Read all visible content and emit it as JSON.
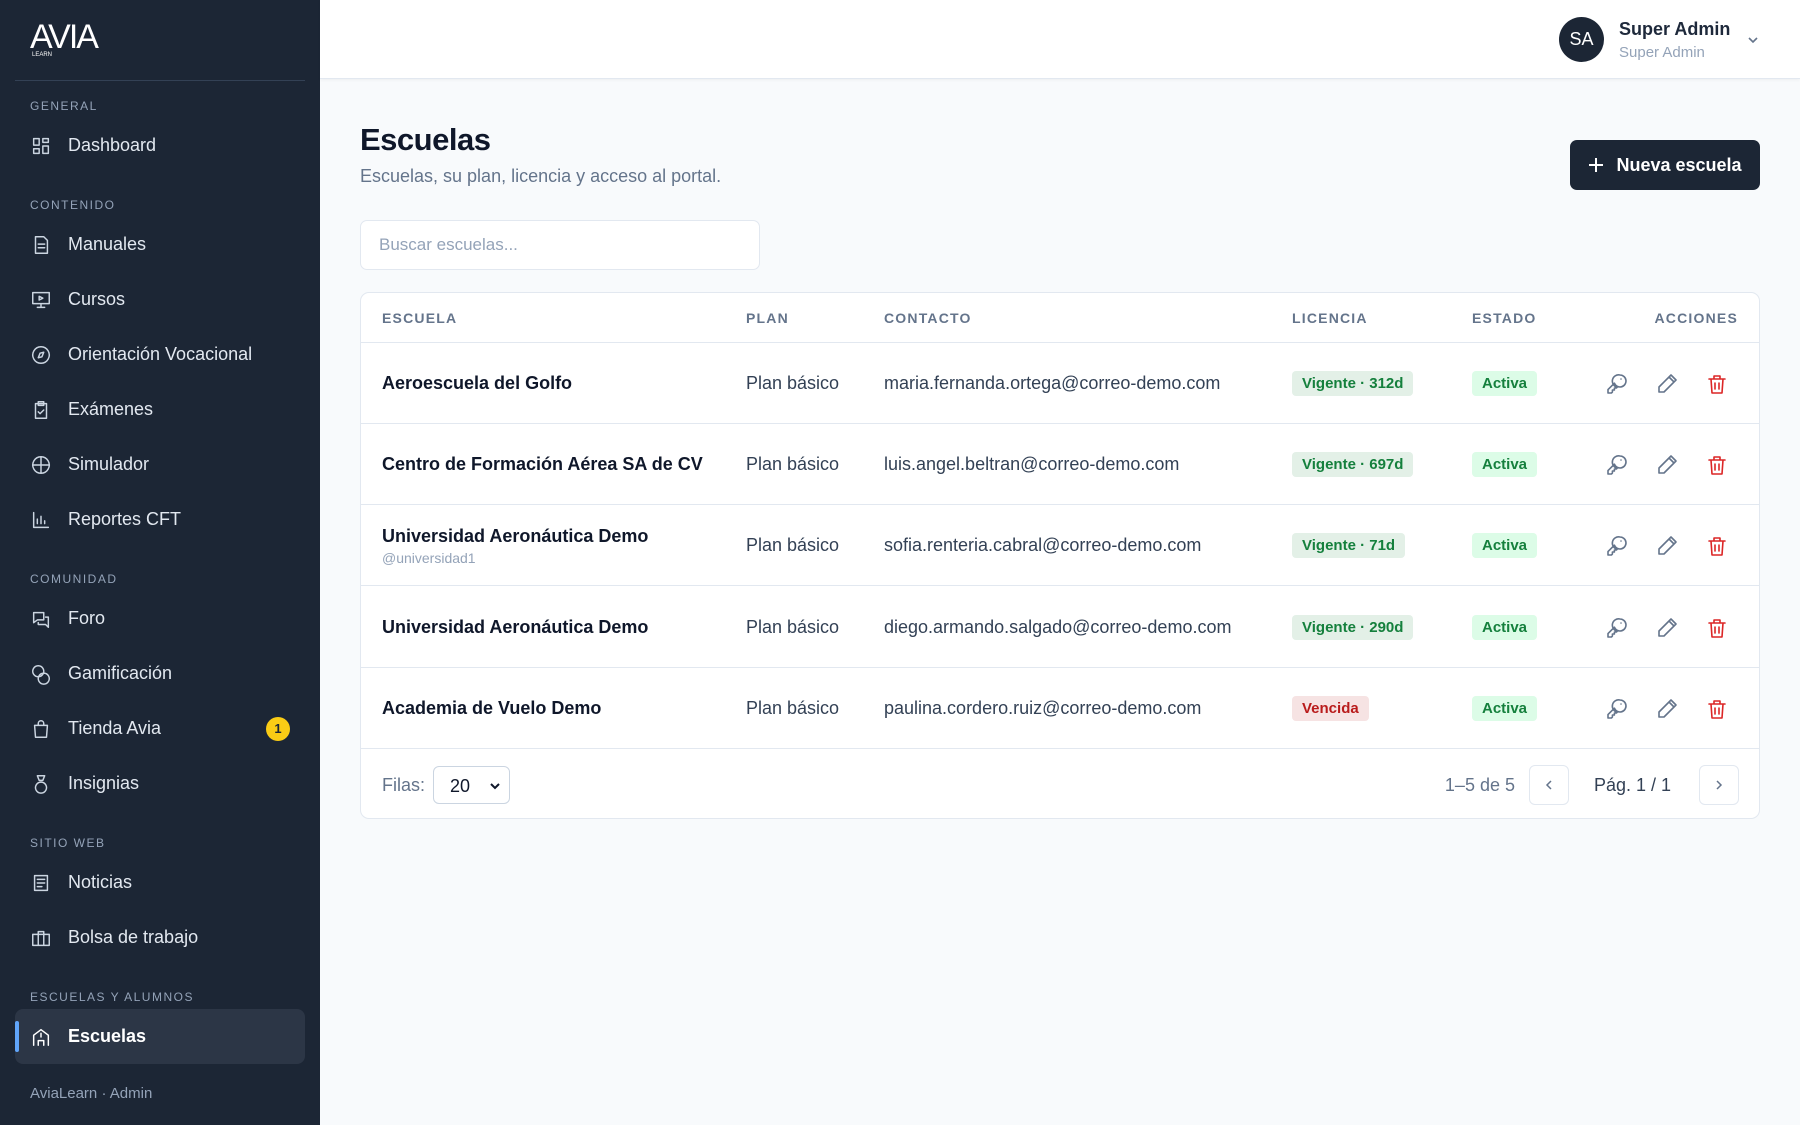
{
  "sidebar": {
    "logo": {
      "mark": "AVIA",
      "sub": "LEARN"
    },
    "sections": [
      {
        "label": "GENERAL",
        "items": [
          {
            "label": "Dashboard"
          }
        ]
      },
      {
        "label": "CONTENIDO",
        "items": [
          {
            "label": "Manuales"
          },
          {
            "label": "Cursos"
          },
          {
            "label": "Orientación Vocacional"
          },
          {
            "label": "Exámenes"
          },
          {
            "label": "Simulador"
          },
          {
            "label": "Reportes CFT"
          }
        ]
      },
      {
        "label": "COMUNIDAD",
        "items": [
          {
            "label": "Foro"
          },
          {
            "label": "Gamificación"
          },
          {
            "label": "Tienda Avia",
            "badge": "1"
          },
          {
            "label": "Insignias"
          }
        ]
      },
      {
        "label": "SITIO WEB",
        "items": [
          {
            "label": "Noticias"
          },
          {
            "label": "Bolsa de trabajo"
          }
        ]
      },
      {
        "label": "ESCUELAS Y ALUMNOS",
        "items": [
          {
            "label": "Escuelas",
            "active": true
          }
        ]
      }
    ],
    "footer": "AviaLearn · Admin"
  },
  "header": {
    "initials": "SA",
    "name": "Super Admin",
    "role": "Super Admin"
  },
  "page": {
    "title": "Escuelas",
    "subtitle": "Escuelas, su plan, licencia y acceso al portal.",
    "button": "Nueva escuela",
    "search_placeholder": "Buscar escuelas..."
  },
  "table": {
    "columns": [
      "ESCUELA",
      "PLAN",
      "CONTACTO",
      "LICENCIA",
      "ESTADO",
      "ACCIONES"
    ],
    "rows": [
      {
        "name": "Aeroescuela del Golfo",
        "plan": "Plan básico",
        "contact": "maria.fernanda.ortega@correo-demo.com",
        "license": "Vigente · 312d",
        "license_color": "#15803d",
        "status": "Activa"
      },
      {
        "name": "Centro de Formación Aérea SA de CV",
        "plan": "Plan básico",
        "contact": "luis.angel.beltran@correo-demo.com",
        "license": "Vigente · 697d",
        "license_color": "#15803d",
        "status": "Activa"
      },
      {
        "name": "Universidad Aeronáutica Demo",
        "handle": "@universidad1",
        "plan": "Plan básico",
        "contact": "sofia.renteria.cabral@correo-demo.com",
        "license": "Vigente · 71d",
        "license_color": "#15803d",
        "status": "Activa"
      },
      {
        "name": "Universidad Aeronáutica Demo",
        "plan": "Plan básico",
        "contact": "diego.armando.salgado@correo-demo.com",
        "license": "Vigente · 290d",
        "license_color": "#15803d",
        "status": "Activa"
      },
      {
        "name": "Academia de Vuelo Demo",
        "plan": "Plan básico",
        "contact": "paulina.cordero.ruiz@correo-demo.com",
        "license": "Vencida",
        "license_color": "#b91c1c",
        "status": "Activa"
      }
    ],
    "footer": {
      "rows_label": "Filas:",
      "rows_value": "20",
      "range": "1–5 de 5",
      "page": "Pág. 1 / 1"
    }
  }
}
